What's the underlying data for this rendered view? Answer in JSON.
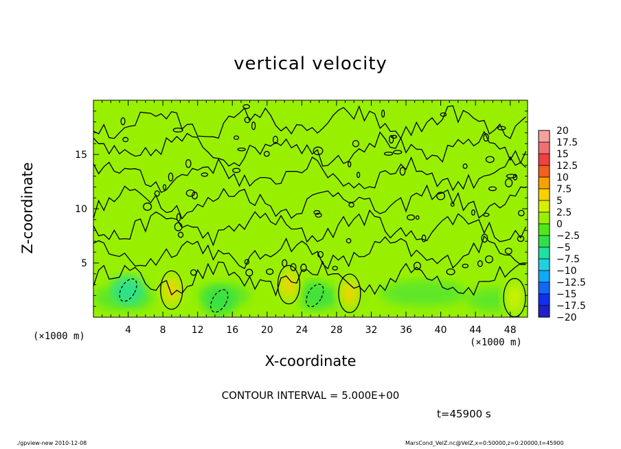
{
  "chart_data": {
    "type": "heatmap",
    "title": "vertical velocity",
    "xlabel": "X-coordinate",
    "ylabel": "Z-coordinate",
    "x_unit_label": "(×1000 m)",
    "xlim": [
      0,
      50
    ],
    "ylim": [
      0,
      20
    ],
    "x_ticks": [
      4,
      8,
      12,
      16,
      20,
      24,
      28,
      32,
      36,
      40,
      44,
      48
    ],
    "y_ticks": [
      5,
      10,
      15
    ],
    "colorbar": {
      "levels": [
        20,
        17.5,
        15,
        12.5,
        10,
        7.5,
        5,
        2.5,
        0,
        -2.5,
        -5,
        -7.5,
        -10,
        -12.5,
        -15,
        -17.5,
        -20
      ],
      "colors": [
        "#f6a0a0",
        "#f07070",
        "#f04040",
        "#f06020",
        "#f8a000",
        "#f8d000",
        "#d8f000",
        "#98f000",
        "#50e818",
        "#30e048",
        "#20e0a0",
        "#20d0e0",
        "#10a8f8",
        "#1068f8",
        "#1030f0",
        "#2020c8",
        "#6010b8"
      ]
    },
    "updraft_cores": [
      {
        "x": 9,
        "z": 2.5,
        "value": 7.5
      },
      {
        "x": 22.5,
        "z": 3,
        "value": 7.5
      },
      {
        "x": 29.5,
        "z": 2.2,
        "value": 7.5
      },
      {
        "x": 48.5,
        "z": 1.8,
        "value": 5
      }
    ],
    "downdraft_regions": [
      {
        "x": 4,
        "z": 2.5,
        "value": -5
      },
      {
        "x": 25.5,
        "z": 2,
        "value": -2.5
      },
      {
        "x": 14.5,
        "z": 1.5,
        "value": -2.5
      }
    ],
    "contour_interval": "CONTOUR INTERVAL = 5.000E+00"
  },
  "annotations": {
    "time": "t=45900 s",
    "footer_left": "./gpview-new   2010-12-08",
    "footer_right": "MarsCond_VelZ.nc@VelZ,x=0:50000,z=0:20000,t=45900"
  }
}
